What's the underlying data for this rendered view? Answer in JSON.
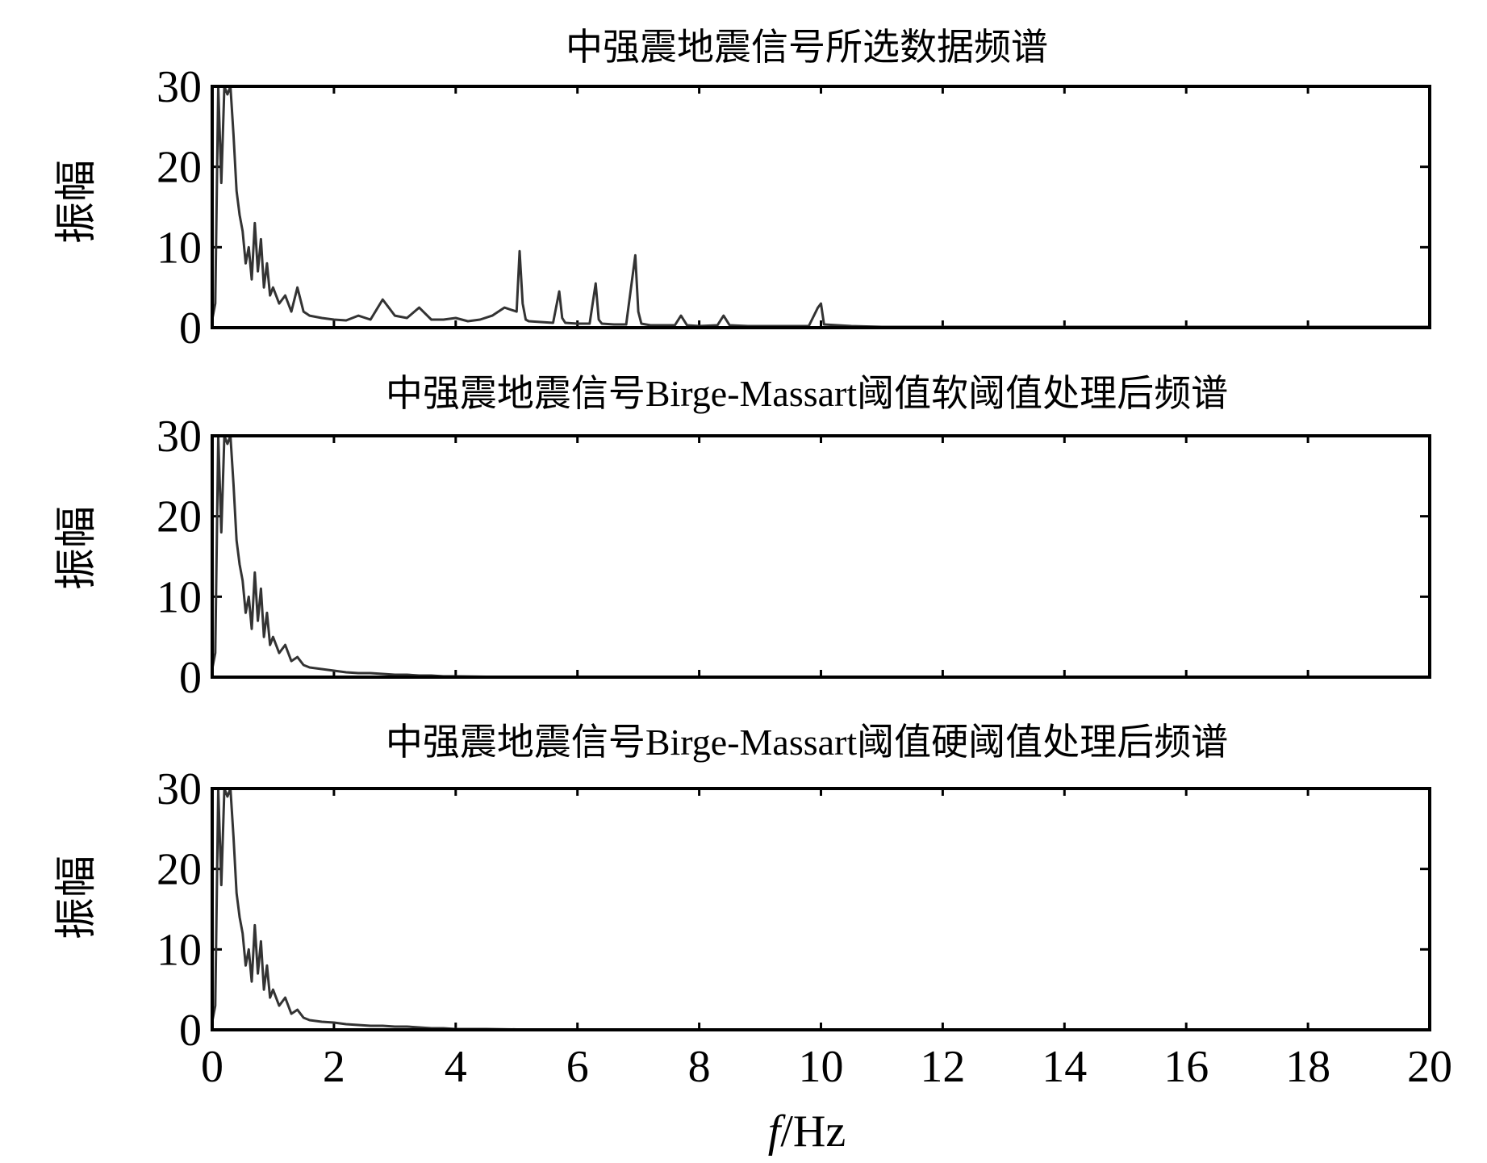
{
  "x_axis": {
    "label_italic": "f",
    "label_rest": "/Hz",
    "ticks": [
      "0",
      "2",
      "4",
      "6",
      "8",
      "10",
      "12",
      "14",
      "16",
      "18",
      "20"
    ],
    "range": [
      0,
      20
    ]
  },
  "chart_data": [
    {
      "type": "line",
      "title": "中强震地震信号所选数据频谱",
      "ylabel": "振幅",
      "xlabel": "f/Hz",
      "xlim": [
        0,
        20
      ],
      "ylim": [
        0,
        30
      ],
      "yticks": [
        "0",
        "10",
        "20",
        "30"
      ],
      "grid": false,
      "series": [
        {
          "color": "#333333",
          "x": [
            0.0,
            0.05,
            0.1,
            0.15,
            0.2,
            0.25,
            0.3,
            0.35,
            0.4,
            0.45,
            0.5,
            0.55,
            0.6,
            0.65,
            0.7,
            0.75,
            0.8,
            0.85,
            0.9,
            0.95,
            1.0,
            1.1,
            1.2,
            1.3,
            1.4,
            1.5,
            1.6,
            1.8,
            2.0,
            2.2,
            2.4,
            2.6,
            2.8,
            3.0,
            3.2,
            3.4,
            3.6,
            3.8,
            4.0,
            4.2,
            4.4,
            4.6,
            4.8,
            5.0,
            5.05,
            5.1,
            5.15,
            5.2,
            5.4,
            5.6,
            5.7,
            5.75,
            5.8,
            6.0,
            6.2,
            6.3,
            6.35,
            6.4,
            6.6,
            6.8,
            6.95,
            7.0,
            7.05,
            7.2,
            7.4,
            7.6,
            7.7,
            7.8,
            8.0,
            8.3,
            8.4,
            8.5,
            8.8,
            9.0,
            9.4,
            9.8,
            9.95,
            10.0,
            10.05,
            10.5,
            11.0,
            12.0,
            13.0,
            14.0,
            15.0,
            16.0,
            17.0,
            18.0,
            19.0,
            20.0
          ],
          "y": [
            1.0,
            3.0,
            30.0,
            18.0,
            30.0,
            29.0,
            30.0,
            24.0,
            17.0,
            14.0,
            12.0,
            8.0,
            10.0,
            6.0,
            13.0,
            7.0,
            11.0,
            5.0,
            8.0,
            4.0,
            5.0,
            3.0,
            4.0,
            2.0,
            5.0,
            2.0,
            1.5,
            1.2,
            1.0,
            0.9,
            1.5,
            1.0,
            3.5,
            1.5,
            1.2,
            2.5,
            1.0,
            1.0,
            1.2,
            0.8,
            1.0,
            1.5,
            2.5,
            2.0,
            9.5,
            3.0,
            1.0,
            0.8,
            0.7,
            0.6,
            4.5,
            1.2,
            0.6,
            0.5,
            0.5,
            5.5,
            1.0,
            0.5,
            0.4,
            0.4,
            9.0,
            2.0,
            0.5,
            0.3,
            0.3,
            0.3,
            1.5,
            0.3,
            0.2,
            0.3,
            1.5,
            0.3,
            0.2,
            0.2,
            0.2,
            0.2,
            2.5,
            3.0,
            0.4,
            0.2,
            0.1,
            0.1,
            0.1,
            0.1,
            0.1,
            0.1,
            0.1,
            0.1,
            0.1,
            0.1
          ]
        }
      ]
    },
    {
      "type": "line",
      "title": "中强震地震信号Birge-Massart阈值软阈值处理后频谱",
      "ylabel": "振幅",
      "xlabel": "f/Hz",
      "xlim": [
        0,
        20
      ],
      "ylim": [
        0,
        30
      ],
      "yticks": [
        "0",
        "10",
        "20",
        "30"
      ],
      "grid": false,
      "series": [
        {
          "color": "#333333",
          "x": [
            0.0,
            0.05,
            0.1,
            0.15,
            0.2,
            0.25,
            0.3,
            0.35,
            0.4,
            0.45,
            0.5,
            0.55,
            0.6,
            0.65,
            0.7,
            0.75,
            0.8,
            0.85,
            0.9,
            0.95,
            1.0,
            1.1,
            1.2,
            1.3,
            1.4,
            1.5,
            1.6,
            1.8,
            2.0,
            2.2,
            2.4,
            2.6,
            2.8,
            3.0,
            3.2,
            3.4,
            3.6,
            3.8,
            4.0,
            4.5,
            5.0,
            6.0,
            8.0,
            10.0,
            12.0,
            15.0,
            20.0
          ],
          "y": [
            1.0,
            3.0,
            30.0,
            18.0,
            30.0,
            29.0,
            30.0,
            24.0,
            17.0,
            14.0,
            12.0,
            8.0,
            10.0,
            6.0,
            13.0,
            7.0,
            11.0,
            5.0,
            8.0,
            4.0,
            5.0,
            3.0,
            4.0,
            2.0,
            2.5,
            1.5,
            1.2,
            1.0,
            0.8,
            0.6,
            0.5,
            0.5,
            0.4,
            0.3,
            0.3,
            0.2,
            0.2,
            0.1,
            0.1,
            0.05,
            0.05,
            0.0,
            0.0,
            0.0,
            0.0,
            0.0,
            0.0
          ]
        }
      ]
    },
    {
      "type": "line",
      "title": "中强震地震信号Birge-Massart阈值硬阈值处理后频谱",
      "ylabel": "振幅",
      "xlabel": "f/Hz",
      "xlim": [
        0,
        20
      ],
      "ylim": [
        0,
        30
      ],
      "yticks": [
        "0",
        "10",
        "20",
        "30"
      ],
      "grid": false,
      "series": [
        {
          "color": "#333333",
          "x": [
            0.0,
            0.05,
            0.1,
            0.15,
            0.2,
            0.25,
            0.3,
            0.35,
            0.4,
            0.45,
            0.5,
            0.55,
            0.6,
            0.65,
            0.7,
            0.75,
            0.8,
            0.85,
            0.9,
            0.95,
            1.0,
            1.1,
            1.2,
            1.3,
            1.4,
            1.5,
            1.6,
            1.8,
            2.0,
            2.2,
            2.4,
            2.6,
            2.8,
            3.0,
            3.2,
            3.4,
            3.6,
            3.8,
            4.0,
            4.5,
            5.0,
            6.0,
            8.0,
            10.0,
            12.0,
            15.0,
            20.0
          ],
          "y": [
            1.0,
            3.0,
            30.0,
            18.0,
            30.0,
            29.0,
            30.0,
            24.0,
            17.0,
            14.0,
            12.0,
            8.0,
            10.0,
            6.0,
            13.0,
            7.0,
            11.0,
            5.0,
            8.0,
            4.0,
            5.0,
            3.0,
            4.0,
            2.0,
            2.5,
            1.5,
            1.2,
            1.0,
            0.9,
            0.7,
            0.6,
            0.5,
            0.5,
            0.4,
            0.4,
            0.3,
            0.2,
            0.2,
            0.1,
            0.1,
            0.05,
            0.0,
            0.0,
            0.0,
            0.0,
            0.0,
            0.0
          ]
        }
      ]
    }
  ]
}
